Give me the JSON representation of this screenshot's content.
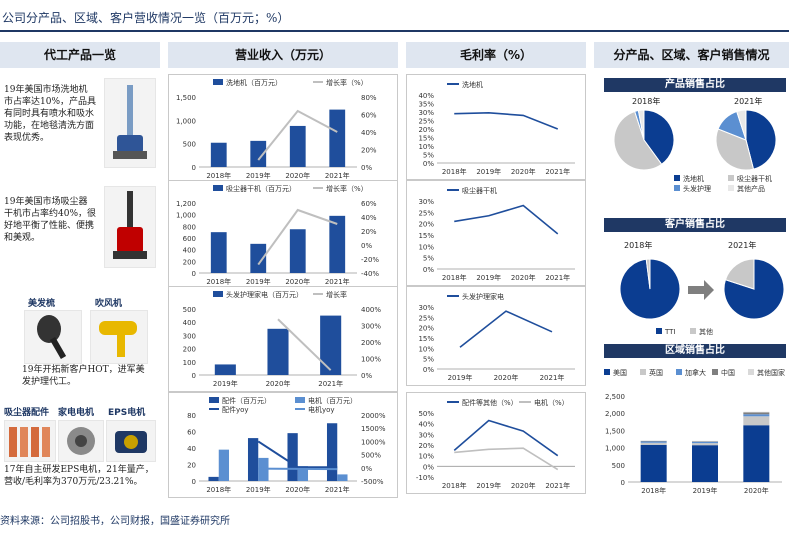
{
  "header": {
    "title": "公司分产品、区域、客户营收情况一览（百万元；%）"
  },
  "sections": {
    "s1": "代工产品一览",
    "s2": "营业收入（万元）",
    "s3": "毛利率（%）",
    "s4": "分产品、区域、客户销售情况"
  },
  "left": {
    "p1_text": "19年美国市场洗地机市占率达10%，产品具有同时具有喷水和吸水功能，在地毯清洗方面表现优秀。",
    "p2_text": "19年美国市场吸尘器干机市占率约40%，很好地平衡了性能、便携和美观。",
    "lbl_beauty": "美发梳",
    "lbl_dryer": "吹风机",
    "p3_text": "19年开拓新客户HOT，进军美发护理代工。",
    "lbl_parts": "吸尘器配件",
    "lbl_motor": "家电电机",
    "lbl_eps": "EPS电机",
    "p4_text": "17年自主研发EPS电机，21年量产，营收/毛利率为370万元/23.21%。"
  },
  "pie_titles": {
    "product": "产品销售占比",
    "customer": "客户销售占比",
    "region": "区域销售占比"
  },
  "source": "资料来源：公司招股书，公司财报，国盛证券研究所",
  "colors": {
    "blue": "#1f4e9c",
    "lightblue": "#5b8fd1",
    "gray": "#c8c8c8",
    "darkblue": "#0b3d91",
    "navy": "#1f3864"
  },
  "chart_data": [
    {
      "id": "rev1",
      "type": "bar",
      "categories": [
        "2018年",
        "2019年",
        "2020年",
        "2021年"
      ],
      "series": [
        {
          "name": "洗地机（百万元）",
          "values": [
            520,
            560,
            880,
            1230
          ]
        },
        {
          "name": "增长率（%）",
          "values": [
            null,
            8,
            64,
            40
          ]
        }
      ],
      "ylim": [
        0,
        1500
      ],
      "ylim2": [
        0,
        80
      ],
      "yticks": [
        "0",
        "500",
        "1,000",
        "1,500"
      ],
      "y2ticks": [
        "0%",
        "20%",
        "40%",
        "60%",
        "80%"
      ]
    },
    {
      "id": "rev2",
      "type": "bar",
      "categories": [
        "2018年",
        "2019年",
        "2020年",
        "2021年"
      ],
      "series": [
        {
          "name": "吸尘器干机（百万元）",
          "values": [
            700,
            500,
            750,
            980
          ]
        },
        {
          "name": "增长率（%）",
          "values": [
            null,
            -28,
            50,
            30
          ]
        }
      ],
      "ylim": [
        0,
        1200
      ],
      "ylim2": [
        -40,
        60
      ],
      "yticks": [
        "0",
        "200",
        "400",
        "600",
        "800",
        "1,000",
        "1,200"
      ],
      "y2ticks": [
        "-40%",
        "-20%",
        "0%",
        "20%",
        "40%",
        "60%"
      ]
    },
    {
      "id": "rev3",
      "type": "bar",
      "categories": [
        "2019年",
        "2020年",
        "2021年"
      ],
      "series": [
        {
          "name": "头发护理家电（百万元）",
          "values": [
            80,
            350,
            450
          ]
        },
        {
          "name": "增长率",
          "values": [
            null,
            338,
            29
          ]
        }
      ],
      "ylim": [
        0,
        500
      ],
      "ylim2": [
        0,
        400
      ],
      "yticks": [
        "0",
        "100",
        "200",
        "300",
        "400",
        "500"
      ],
      "y2ticks": [
        "0%",
        "100%",
        "200%",
        "300%",
        "400%"
      ]
    },
    {
      "id": "rev4",
      "type": "bar",
      "categories": [
        "2018年",
        "2019年",
        "2020年",
        "2021年"
      ],
      "series": [
        {
          "name": "配件（百万元）",
          "values": [
            5,
            52,
            58,
            70
          ]
        },
        {
          "name": "电机（百万元）",
          "values": [
            38,
            28,
            18,
            8
          ]
        },
        {
          "name": "配件yoy",
          "values": [
            null,
            1000,
            20,
            20
          ]
        },
        {
          "name": "电机yoy",
          "values": [
            null,
            -30,
            -40,
            -50
          ]
        }
      ],
      "ylim": [
        0,
        80
      ],
      "ylim2": [
        -500,
        2000
      ],
      "yticks": [
        "0",
        "20",
        "40",
        "60",
        "80"
      ],
      "y2ticks": [
        "-500%",
        "0%",
        "500%",
        "1000%",
        "1500%",
        "2000%"
      ]
    },
    {
      "id": "gm1",
      "type": "line",
      "categories": [
        "2018年",
        "2019年",
        "2020年",
        "2021年"
      ],
      "series": [
        {
          "name": "洗地机",
          "values": [
            29,
            29.5,
            28,
            20
          ]
        }
      ],
      "ylim": [
        0,
        40
      ],
      "yticks": [
        "0%",
        "5%",
        "10%",
        "15%",
        "20%",
        "25%",
        "30%",
        "35%",
        "40%"
      ]
    },
    {
      "id": "gm2",
      "type": "line",
      "categories": [
        "2018年",
        "2019年",
        "2020年",
        "2021年"
      ],
      "series": [
        {
          "name": "吸尘器干机",
          "values": [
            21,
            23.5,
            28,
            15.5
          ]
        }
      ],
      "ylim": [
        0,
        30
      ],
      "yticks": [
        "0%",
        "5%",
        "10%",
        "15%",
        "20%",
        "25%",
        "30%"
      ]
    },
    {
      "id": "gm3",
      "type": "line",
      "categories": [
        "2019年",
        "2020年",
        "2021年"
      ],
      "series": [
        {
          "name": "头发护理家电",
          "values": [
            10.5,
            28,
            18
          ]
        }
      ],
      "ylim": [
        0,
        30
      ],
      "yticks": [
        "0%",
        "5%",
        "10%",
        "15%",
        "20%",
        "25%",
        "30%"
      ]
    },
    {
      "id": "gm4",
      "type": "line",
      "categories": [
        "2018年",
        "2019年",
        "2020年",
        "2021年"
      ],
      "series": [
        {
          "name": "配件等其他（%）",
          "values": [
            15,
            43,
            33,
            10
          ]
        },
        {
          "name": "电机（%）",
          "values": [
            13,
            16,
            17,
            -3
          ]
        }
      ],
      "ylim": [
        -10,
        50
      ],
      "yticks": [
        "-10%",
        "0%",
        "10%",
        "20%",
        "30%",
        "40%",
        "50%"
      ]
    },
    {
      "id": "pie_product",
      "type": "pie",
      "groups": [
        {
          "label": "2018年",
          "slices": [
            {
              "name": "洗地机",
              "value": 40
            },
            {
              "name": "吸尘器干机",
              "value": 55
            },
            {
              "name": "头发护理",
              "value": 2
            },
            {
              "name": "其他产品",
              "value": 3
            }
          ]
        },
        {
          "label": "2021年",
          "slices": [
            {
              "name": "洗地机",
              "value": 46
            },
            {
              "name": "吸尘器干机",
              "value": 35
            },
            {
              "name": "头发护理",
              "value": 14
            },
            {
              "name": "其他产品",
              "value": 5
            }
          ]
        }
      ]
    },
    {
      "id": "pie_customer",
      "type": "pie",
      "groups": [
        {
          "label": "2018年",
          "slices": [
            {
              "name": "TTI",
              "value": 98
            },
            {
              "name": "其他",
              "value": 2
            }
          ]
        },
        {
          "label": "2021年",
          "slices": [
            {
              "name": "TTI",
              "value": 80
            },
            {
              "name": "其他",
              "value": 20
            }
          ]
        }
      ]
    },
    {
      "id": "region",
      "type": "bar",
      "categories": [
        "2018年",
        "2019年",
        "2020年"
      ],
      "series": [
        {
          "name": "美国",
          "values": [
            1080,
            1070,
            1650
          ]
        },
        {
          "name": "英国",
          "values": [
            60,
            60,
            260
          ]
        },
        {
          "name": "加拿大",
          "values": [
            40,
            40,
            60
          ]
        },
        {
          "name": "中国",
          "values": [
            15,
            15,
            50
          ]
        },
        {
          "name": "其他国家",
          "values": [
            10,
            10,
            20
          ]
        }
      ],
      "ylim": [
        0,
        2500
      ],
      "yticks": [
        "0",
        "500",
        "1,000",
        "1,500",
        "2,000",
        "2,500"
      ]
    }
  ]
}
